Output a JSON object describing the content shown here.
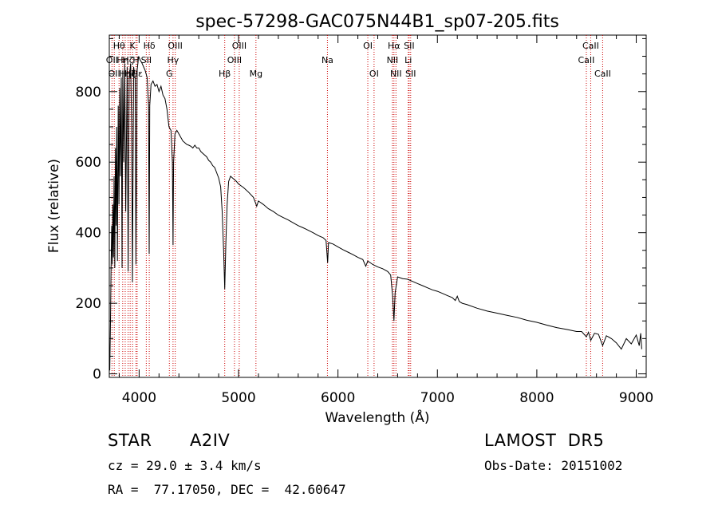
{
  "chart_data": {
    "type": "line",
    "title": "spec-57298-GAC075N44B1_sp07-205.fits",
    "xlabel": "Wavelength (Å)",
    "ylabel": "Flux (relative)",
    "xlim": [
      3700,
      9100
    ],
    "ylim": [
      -10,
      960
    ],
    "xticks": [
      4000,
      5000,
      6000,
      7000,
      8000,
      9000
    ],
    "yticks": [
      0,
      200,
      400,
      600,
      800
    ],
    "xtick_labels": [
      "4000",
      "5000",
      "6000",
      "7000",
      "8000",
      "9000"
    ],
    "ytick_labels": [
      "0",
      "200",
      "400",
      "600",
      "800"
    ],
    "line_color": "#000000",
    "marker_color": "#cc0000",
    "series": [
      {
        "points": [
          [
            3705,
            10
          ],
          [
            3712,
            150
          ],
          [
            3718,
            300
          ],
          [
            3724,
            420
          ],
          [
            3730,
            310
          ],
          [
            3736,
            480
          ],
          [
            3742,
            330
          ],
          [
            3748,
            560
          ],
          [
            3755,
            300
          ],
          [
            3762,
            640
          ],
          [
            3768,
            420
          ],
          [
            3775,
            700
          ],
          [
            3782,
            320
          ],
          [
            3790,
            760
          ],
          [
            3797,
            480
          ],
          [
            3805,
            810
          ],
          [
            3812,
            560
          ],
          [
            3820,
            840
          ],
          [
            3828,
            300
          ],
          [
            3836,
            860
          ],
          [
            3845,
            600
          ],
          [
            3855,
            880
          ],
          [
            3865,
            460
          ],
          [
            3880,
            870
          ],
          [
            3889,
            290
          ],
          [
            3900,
            840
          ],
          [
            3915,
            880
          ],
          [
            3925,
            700
          ],
          [
            3933,
            260
          ],
          [
            3945,
            870
          ],
          [
            3960,
            840
          ],
          [
            3968,
            310
          ],
          [
            3980,
            860
          ],
          [
            3995,
            900
          ],
          [
            4010,
            890
          ],
          [
            4030,
            880
          ],
          [
            4060,
            860
          ],
          [
            4080,
            840
          ],
          [
            4095,
            760
          ],
          [
            4101,
            340
          ],
          [
            4107,
            760
          ],
          [
            4120,
            820
          ],
          [
            4140,
            830
          ],
          [
            4160,
            815
          ],
          [
            4180,
            820
          ],
          [
            4200,
            800
          ],
          [
            4220,
            815
          ],
          [
            4240,
            790
          ],
          [
            4260,
            780
          ],
          [
            4280,
            750
          ],
          [
            4300,
            700
          ],
          [
            4320,
            690
          ],
          [
            4335,
            600
          ],
          [
            4341,
            365
          ],
          [
            4347,
            600
          ],
          [
            4360,
            680
          ],
          [
            4380,
            690
          ],
          [
            4400,
            680
          ],
          [
            4420,
            670
          ],
          [
            4440,
            660
          ],
          [
            4460,
            655
          ],
          [
            4480,
            650
          ],
          [
            4500,
            648
          ],
          [
            4520,
            645
          ],
          [
            4540,
            640
          ],
          [
            4560,
            648
          ],
          [
            4580,
            640
          ],
          [
            4600,
            640
          ],
          [
            4620,
            630
          ],
          [
            4640,
            625
          ],
          [
            4660,
            620
          ],
          [
            4680,
            615
          ],
          [
            4700,
            605
          ],
          [
            4720,
            600
          ],
          [
            4740,
            590
          ],
          [
            4760,
            585
          ],
          [
            4780,
            570
          ],
          [
            4800,
            555
          ],
          [
            4820,
            530
          ],
          [
            4835,
            460
          ],
          [
            4850,
            350
          ],
          [
            4861,
            240
          ],
          [
            4872,
            370
          ],
          [
            4885,
            480
          ],
          [
            4900,
            545
          ],
          [
            4920,
            560
          ],
          [
            4940,
            555
          ],
          [
            4960,
            550
          ],
          [
            4980,
            545
          ],
          [
            5000,
            538
          ],
          [
            5050,
            528
          ],
          [
            5100,
            515
          ],
          [
            5150,
            500
          ],
          [
            5170,
            485
          ],
          [
            5183,
            475
          ],
          [
            5200,
            490
          ],
          [
            5250,
            480
          ],
          [
            5300,
            468
          ],
          [
            5350,
            460
          ],
          [
            5400,
            450
          ],
          [
            5450,
            443
          ],
          [
            5500,
            436
          ],
          [
            5550,
            428
          ],
          [
            5600,
            420
          ],
          [
            5650,
            414
          ],
          [
            5700,
            407
          ],
          [
            5750,
            400
          ],
          [
            5800,
            392
          ],
          [
            5850,
            386
          ],
          [
            5880,
            378
          ],
          [
            5890,
            340
          ],
          [
            5896,
            315
          ],
          [
            5905,
            372
          ],
          [
            5950,
            368
          ],
          [
            6000,
            360
          ],
          [
            6050,
            352
          ],
          [
            6100,
            345
          ],
          [
            6150,
            338
          ],
          [
            6200,
            330
          ],
          [
            6250,
            324
          ],
          [
            6280,
            305
          ],
          [
            6300,
            320
          ],
          [
            6350,
            310
          ],
          [
            6400,
            303
          ],
          [
            6450,
            298
          ],
          [
            6500,
            290
          ],
          [
            6530,
            280
          ],
          [
            6550,
            220
          ],
          [
            6563,
            150
          ],
          [
            6575,
            230
          ],
          [
            6600,
            275
          ],
          [
            6650,
            270
          ],
          [
            6700,
            268
          ],
          [
            6750,
            262
          ],
          [
            6800,
            256
          ],
          [
            6850,
            250
          ],
          [
            6900,
            244
          ],
          [
            6950,
            238
          ],
          [
            7000,
            234
          ],
          [
            7050,
            228
          ],
          [
            7100,
            222
          ],
          [
            7150,
            216
          ],
          [
            7180,
            208
          ],
          [
            7200,
            220
          ],
          [
            7220,
            205
          ],
          [
            7250,
            200
          ],
          [
            7300,
            196
          ],
          [
            7400,
            186
          ],
          [
            7500,
            178
          ],
          [
            7600,
            172
          ],
          [
            7700,
            166
          ],
          [
            7800,
            160
          ],
          [
            7900,
            152
          ],
          [
            8000,
            146
          ],
          [
            8100,
            138
          ],
          [
            8200,
            131
          ],
          [
            8300,
            126
          ],
          [
            8400,
            120
          ],
          [
            8450,
            120
          ],
          [
            8498,
            105
          ],
          [
            8520,
            118
          ],
          [
            8542,
            95
          ],
          [
            8580,
            115
          ],
          [
            8620,
            112
          ],
          [
            8662,
            80
          ],
          [
            8700,
            108
          ],
          [
            8750,
            100
          ],
          [
            8800,
            88
          ],
          [
            8850,
            70
          ],
          [
            8900,
            100
          ],
          [
            8950,
            85
          ],
          [
            9000,
            110
          ],
          [
            9030,
            80
          ],
          [
            9045,
            115
          ],
          [
            9055,
            70
          ]
        ]
      }
    ],
    "lines": [
      {
        "wavelength": 3727,
        "label": "OII",
        "row": 2
      },
      {
        "wavelength": 3750,
        "label": "OII",
        "row": 3
      },
      {
        "wavelength": 3798,
        "label": "Hθ",
        "row": 1
      },
      {
        "wavelength": 3835,
        "label": "Hη",
        "row": 2
      },
      {
        "wavelength": 3860,
        "label": "Hη",
        "row": 3
      },
      {
        "wavelength": 3889,
        "label": "Hζ",
        "row": 2
      },
      {
        "wavelength": 3910,
        "label": "Hζ",
        "row": 3
      },
      {
        "wavelength": 3934,
        "label": "K",
        "row": 1
      },
      {
        "wavelength": 3968,
        "label": "H",
        "row": 2
      },
      {
        "wavelength": 3980,
        "label": "Hε",
        "row": 3
      },
      {
        "wavelength": 4072,
        "label": "SII",
        "row": 2
      },
      {
        "wavelength": 4102,
        "label": "Hδ",
        "row": 1
      },
      {
        "wavelength": 4304,
        "label": "G",
        "row": 3
      },
      {
        "wavelength": 4341,
        "label": "Hγ",
        "row": 2
      },
      {
        "wavelength": 4363,
        "label": "OIII",
        "row": 1
      },
      {
        "wavelength": 4861,
        "label": "Hβ",
        "row": 3
      },
      {
        "wavelength": 4959,
        "label": "OIII",
        "row": 2
      },
      {
        "wavelength": 5007,
        "label": "OIII",
        "row": 1
      },
      {
        "wavelength": 5175,
        "label": "Mg",
        "row": 3
      },
      {
        "wavelength": 5894,
        "label": "Na",
        "row": 2
      },
      {
        "wavelength": 6300,
        "label": "OI",
        "row": 1
      },
      {
        "wavelength": 6363,
        "label": "OI",
        "row": 3
      },
      {
        "wavelength": 6548,
        "label": "NII",
        "row": 2
      },
      {
        "wavelength": 6563,
        "label": "Hα",
        "row": 1
      },
      {
        "wavelength": 6583,
        "label": "NII",
        "row": 3
      },
      {
        "wavelength": 6707,
        "label": "Li",
        "row": 2
      },
      {
        "wavelength": 6716,
        "label": "SII",
        "row": 1
      },
      {
        "wavelength": 6731,
        "label": "SII",
        "row": 3
      },
      {
        "wavelength": 8498,
        "label": "CaII",
        "row": 2
      },
      {
        "wavelength": 8542,
        "label": "CaII",
        "row": 1
      },
      {
        "wavelength": 8662,
        "label": "CaII",
        "row": 3
      }
    ]
  },
  "info": {
    "object_type": "STAR",
    "subclass": "A2IV",
    "survey": "LAMOST  DR5",
    "redshift": "cz = 29.0 ± 3.4 km/s",
    "obs_date": "Obs-Date: 20151002",
    "coords": "RA =  77.17050, DEC =  42.60647"
  }
}
